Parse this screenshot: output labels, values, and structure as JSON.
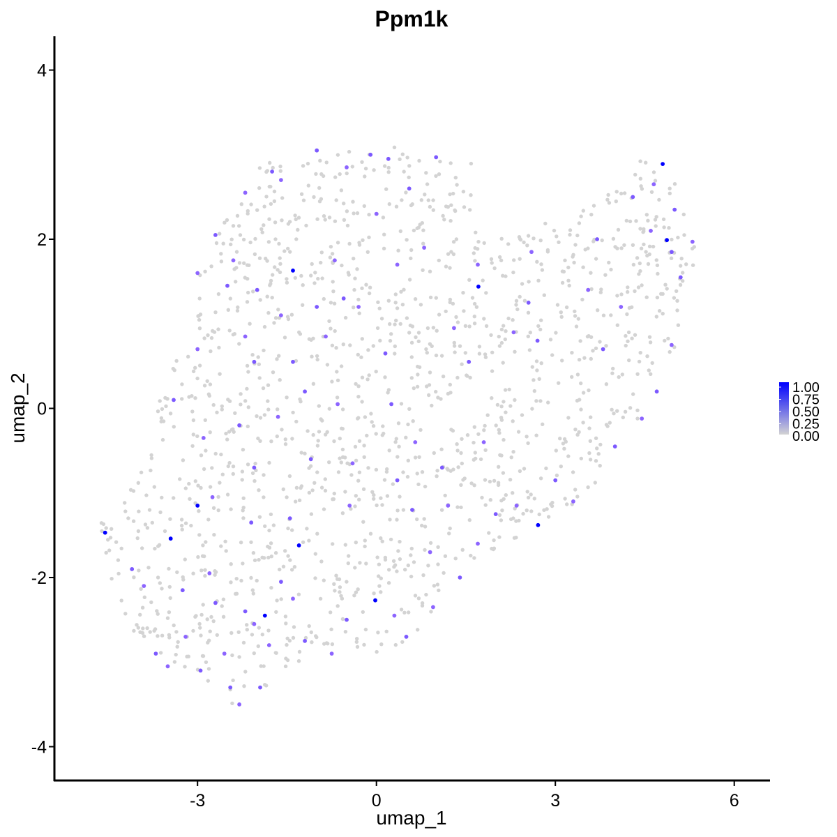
{
  "chart_data": {
    "type": "scatter",
    "title": "Ppm1k",
    "xlabel": "umap_1",
    "ylabel": "umap_2",
    "xlim": [
      -5.4,
      6.6
    ],
    "ylim": [
      -4.4,
      4.4
    ],
    "xticks": [
      -3,
      0,
      3,
      6
    ],
    "yticks": [
      -4,
      -2,
      0,
      2,
      4
    ],
    "xtick_labels": [
      "-3",
      "0",
      "3",
      "6"
    ],
    "ytick_labels": [
      "-4",
      "-2",
      "0",
      "2",
      "4"
    ],
    "grid": false,
    "legend": {
      "placement": "right",
      "type": "colorbar",
      "ticks": [
        1.0,
        0.75,
        0.5,
        0.25,
        0.0
      ],
      "labels": [
        "1.00",
        "0.75",
        "0.50",
        "0.25",
        "0.00"
      ],
      "low_color": "#d3d3d3",
      "high_color": "#0000ff"
    },
    "colors": {
      "low": "#d3d3d3",
      "mid": "#8c64ff",
      "high": "#0000ff"
    },
    "shape": {
      "description": "dense cloud of low-expression cells forming a broad diagonal band from lower-left to upper-right",
      "hull": [
        [
          -4.7,
          -1.3
        ],
        [
          -3.8,
          -0.6
        ],
        [
          -3.6,
          0.3
        ],
        [
          -3.2,
          0.9
        ],
        [
          -2.9,
          1.9
        ],
        [
          -2.2,
          2.6
        ],
        [
          -1.9,
          2.9
        ],
        [
          -1.0,
          3.05
        ],
        [
          0.2,
          3.15
        ],
        [
          1.0,
          2.95
        ],
        [
          1.6,
          2.9
        ],
        [
          1.8,
          2.0
        ],
        [
          2.5,
          2.1
        ],
        [
          3.3,
          2.45
        ],
        [
          4.1,
          2.6
        ],
        [
          4.45,
          2.95
        ],
        [
          5.0,
          2.7
        ],
        [
          5.35,
          2.4
        ],
        [
          5.35,
          1.7
        ],
        [
          5.1,
          0.9
        ],
        [
          4.8,
          0.3
        ],
        [
          4.3,
          -0.2
        ],
        [
          3.8,
          -0.7
        ],
        [
          3.6,
          -1.1
        ],
        [
          2.9,
          -1.3
        ],
        [
          2.3,
          -1.6
        ],
        [
          1.7,
          -1.8
        ],
        [
          1.2,
          -2.0
        ],
        [
          0.8,
          -2.6
        ],
        [
          0.3,
          -2.9
        ],
        [
          -0.3,
          -3.0
        ],
        [
          -1.0,
          -3.1
        ],
        [
          -1.4,
          -3.1
        ],
        [
          -2.0,
          -3.4
        ],
        [
          -2.4,
          -3.5
        ],
        [
          -2.9,
          -3.2
        ],
        [
          -3.7,
          -2.9
        ],
        [
          -4.3,
          -2.5
        ],
        [
          -4.5,
          -1.9
        ],
        [
          -4.6,
          -1.6
        ]
      ],
      "background_points": 1450,
      "background_value": 0.0
    },
    "expressing_points": [
      {
        "x": -4.55,
        "y": -1.47,
        "value": 1.0
      },
      {
        "x": -3.45,
        "y": -1.54,
        "value": 1.0
      },
      {
        "x": -3.0,
        "y": -1.15,
        "value": 1.0
      },
      {
        "x": -1.3,
        "y": -1.62,
        "value": 1.0
      },
      {
        "x": -1.4,
        "y": 1.63,
        "value": 1.0
      },
      {
        "x": -1.87,
        "y": -2.45,
        "value": 1.0
      },
      {
        "x": -0.02,
        "y": -2.27,
        "value": 1.0
      },
      {
        "x": 1.71,
        "y": 1.44,
        "value": 1.0
      },
      {
        "x": 2.71,
        "y": -1.38,
        "value": 1.0
      },
      {
        "x": 4.8,
        "y": 2.89,
        "value": 1.0
      },
      {
        "x": 4.87,
        "y": 1.99,
        "value": 1.0
      },
      {
        "x": -4.1,
        "y": -1.9,
        "value": 0.6
      },
      {
        "x": -3.9,
        "y": -2.1,
        "value": 0.55
      },
      {
        "x": -3.7,
        "y": -2.9,
        "value": 0.6
      },
      {
        "x": -3.5,
        "y": -3.05,
        "value": 0.55
      },
      {
        "x": -3.25,
        "y": -2.15,
        "value": 0.6
      },
      {
        "x": -3.2,
        "y": -2.7,
        "value": 0.55
      },
      {
        "x": -2.95,
        "y": -3.1,
        "value": 0.6
      },
      {
        "x": -2.8,
        "y": -1.95,
        "value": 0.55
      },
      {
        "x": -2.7,
        "y": -2.3,
        "value": 0.6
      },
      {
        "x": -2.55,
        "y": -2.9,
        "value": 0.55
      },
      {
        "x": -2.45,
        "y": -3.3,
        "value": 0.6
      },
      {
        "x": -2.3,
        "y": -3.5,
        "value": 0.55
      },
      {
        "x": -2.2,
        "y": -2.4,
        "value": 0.6
      },
      {
        "x": -2.05,
        "y": -2.55,
        "value": 0.55
      },
      {
        "x": -1.95,
        "y": -3.3,
        "value": 0.6
      },
      {
        "x": -1.8,
        "y": -2.8,
        "value": 0.55
      },
      {
        "x": -1.6,
        "y": -2.05,
        "value": 0.6
      },
      {
        "x": -1.4,
        "y": -2.25,
        "value": 0.55
      },
      {
        "x": -1.2,
        "y": -2.75,
        "value": 0.6
      },
      {
        "x": -0.75,
        "y": -2.9,
        "value": 0.55
      },
      {
        "x": -0.5,
        "y": -2.5,
        "value": 0.6
      },
      {
        "x": 0.3,
        "y": -2.45,
        "value": 0.55
      },
      {
        "x": 0.5,
        "y": -2.7,
        "value": 0.6
      },
      {
        "x": 0.95,
        "y": -2.35,
        "value": 0.55
      },
      {
        "x": 1.4,
        "y": -2.0,
        "value": 0.6
      },
      {
        "x": 1.7,
        "y": -1.6,
        "value": 0.55
      },
      {
        "x": 2.0,
        "y": -1.25,
        "value": 0.6
      },
      {
        "x": 2.35,
        "y": -1.15,
        "value": 0.55
      },
      {
        "x": 3.0,
        "y": -0.85,
        "value": 0.6
      },
      {
        "x": 3.3,
        "y": -1.1,
        "value": 0.55
      },
      {
        "x": 4.0,
        "y": -0.45,
        "value": 0.6
      },
      {
        "x": 4.45,
        "y": -0.12,
        "value": 0.55
      },
      {
        "x": 4.7,
        "y": 0.2,
        "value": 0.6
      },
      {
        "x": 4.95,
        "y": 0.75,
        "value": 0.55
      },
      {
        "x": 5.1,
        "y": 1.55,
        "value": 0.6
      },
      {
        "x": 5.3,
        "y": 1.97,
        "value": 0.55
      },
      {
        "x": 4.95,
        "y": 1.85,
        "value": 0.6
      },
      {
        "x": 4.6,
        "y": 2.1,
        "value": 0.55
      },
      {
        "x": 4.3,
        "y": 2.5,
        "value": 0.6
      },
      {
        "x": 4.65,
        "y": 2.65,
        "value": 0.55
      },
      {
        "x": 5.0,
        "y": 2.35,
        "value": 0.6
      },
      {
        "x": 4.1,
        "y": 1.2,
        "value": 0.55
      },
      {
        "x": 3.7,
        "y": 2.0,
        "value": 0.6
      },
      {
        "x": 3.55,
        "y": 1.4,
        "value": 0.55
      },
      {
        "x": 3.8,
        "y": 0.7,
        "value": 0.6
      },
      {
        "x": 2.6,
        "y": 1.85,
        "value": 0.55
      },
      {
        "x": 2.55,
        "y": 1.25,
        "value": 0.6
      },
      {
        "x": 2.3,
        "y": 0.9,
        "value": 0.55
      },
      {
        "x": 2.7,
        "y": 0.8,
        "value": 0.6
      },
      {
        "x": 1.7,
        "y": 1.7,
        "value": 0.55
      },
      {
        "x": 1.55,
        "y": 0.55,
        "value": 0.6
      },
      {
        "x": 1.3,
        "y": 0.95,
        "value": 0.55
      },
      {
        "x": 1.0,
        "y": 2.97,
        "value": 0.6
      },
      {
        "x": 0.8,
        "y": 1.9,
        "value": 0.55
      },
      {
        "x": 0.55,
        "y": 2.6,
        "value": 0.6
      },
      {
        "x": 0.35,
        "y": 1.7,
        "value": 0.55
      },
      {
        "x": 0.2,
        "y": 2.95,
        "value": 0.6
      },
      {
        "x": 0.0,
        "y": 2.3,
        "value": 0.55
      },
      {
        "x": -0.1,
        "y": 3.0,
        "value": 0.6
      },
      {
        "x": -0.5,
        "y": 2.85,
        "value": 0.55
      },
      {
        "x": -1.0,
        "y": 3.05,
        "value": 0.6
      },
      {
        "x": -1.6,
        "y": 2.7,
        "value": 0.55
      },
      {
        "x": -1.75,
        "y": 2.8,
        "value": 0.6
      },
      {
        "x": -2.2,
        "y": 2.55,
        "value": 0.55
      },
      {
        "x": -2.7,
        "y": 2.05,
        "value": 0.6
      },
      {
        "x": -2.4,
        "y": 1.75,
        "value": 0.55
      },
      {
        "x": -2.5,
        "y": 1.45,
        "value": 0.6
      },
      {
        "x": -3.0,
        "y": 1.6,
        "value": 0.55
      },
      {
        "x": -2.0,
        "y": 1.4,
        "value": 0.6
      },
      {
        "x": -1.6,
        "y": 1.1,
        "value": 0.55
      },
      {
        "x": -1.0,
        "y": 1.2,
        "value": 0.6
      },
      {
        "x": -0.7,
        "y": 1.75,
        "value": 0.55
      },
      {
        "x": -0.55,
        "y": 1.3,
        "value": 0.6
      },
      {
        "x": -0.3,
        "y": 1.2,
        "value": 0.55
      },
      {
        "x": 0.15,
        "y": 0.65,
        "value": 0.6
      },
      {
        "x": -0.85,
        "y": 0.85,
        "value": 0.55
      },
      {
        "x": -1.4,
        "y": 0.55,
        "value": 0.6
      },
      {
        "x": -2.2,
        "y": 0.85,
        "value": 0.55
      },
      {
        "x": -2.05,
        "y": 0.55,
        "value": 0.6
      },
      {
        "x": -3.0,
        "y": 0.7,
        "value": 0.55
      },
      {
        "x": -3.4,
        "y": 0.1,
        "value": 0.6
      },
      {
        "x": -2.9,
        "y": -0.35,
        "value": 0.55
      },
      {
        "x": -2.3,
        "y": -0.2,
        "value": 0.6
      },
      {
        "x": -1.65,
        "y": -0.1,
        "value": 0.55
      },
      {
        "x": -1.2,
        "y": 0.2,
        "value": 0.6
      },
      {
        "x": -0.65,
        "y": 0.05,
        "value": 0.55
      },
      {
        "x": 0.25,
        "y": 0.05,
        "value": 0.6
      },
      {
        "x": 0.65,
        "y": -0.4,
        "value": 0.55
      },
      {
        "x": 1.1,
        "y": -0.7,
        "value": 0.6
      },
      {
        "x": 1.8,
        "y": -0.4,
        "value": 0.55
      },
      {
        "x": -1.1,
        "y": -0.6,
        "value": 0.6
      },
      {
        "x": -0.4,
        "y": -0.65,
        "value": 0.55
      },
      {
        "x": -2.05,
        "y": -0.7,
        "value": 0.6
      },
      {
        "x": -2.75,
        "y": -1.05,
        "value": 0.55
      },
      {
        "x": -1.45,
        "y": -1.3,
        "value": 0.6
      },
      {
        "x": -0.45,
        "y": -1.15,
        "value": 0.55
      },
      {
        "x": 0.6,
        "y": -1.2,
        "value": 0.6
      },
      {
        "x": 0.9,
        "y": -1.7,
        "value": 0.55
      },
      {
        "x": -2.1,
        "y": -1.35,
        "value": 0.6
      },
      {
        "x": 1.2,
        "y": -1.15,
        "value": 0.55
      },
      {
        "x": 0.35,
        "y": -0.85,
        "value": 0.6
      }
    ]
  }
}
